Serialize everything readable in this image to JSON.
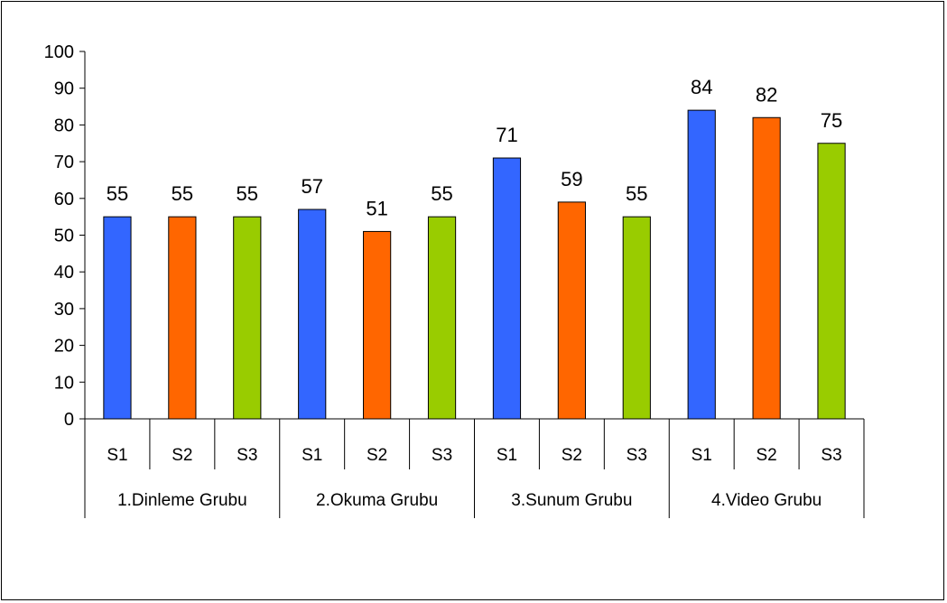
{
  "chart_data": {
    "type": "bar",
    "groups": [
      "1.Dinleme Grubu",
      "2.Okuma Grubu",
      "3.Sunum Grubu",
      "4.Video Grubu"
    ],
    "sub_categories": [
      "S1",
      "S2",
      "S3"
    ],
    "values": [
      [
        55,
        55,
        55
      ],
      [
        57,
        51,
        55
      ],
      [
        71,
        59,
        55
      ],
      [
        84,
        82,
        75
      ]
    ],
    "bar_colors": [
      "#3366ff",
      "#ff6600",
      "#99cc00"
    ],
    "data_labels": true,
    "ylim": [
      0,
      100
    ],
    "yticks": [
      0,
      10,
      20,
      30,
      40,
      50,
      60,
      70,
      80,
      90,
      100
    ],
    "grid": false,
    "legend": "none",
    "title": "",
    "xlabel": "",
    "ylabel": ""
  }
}
